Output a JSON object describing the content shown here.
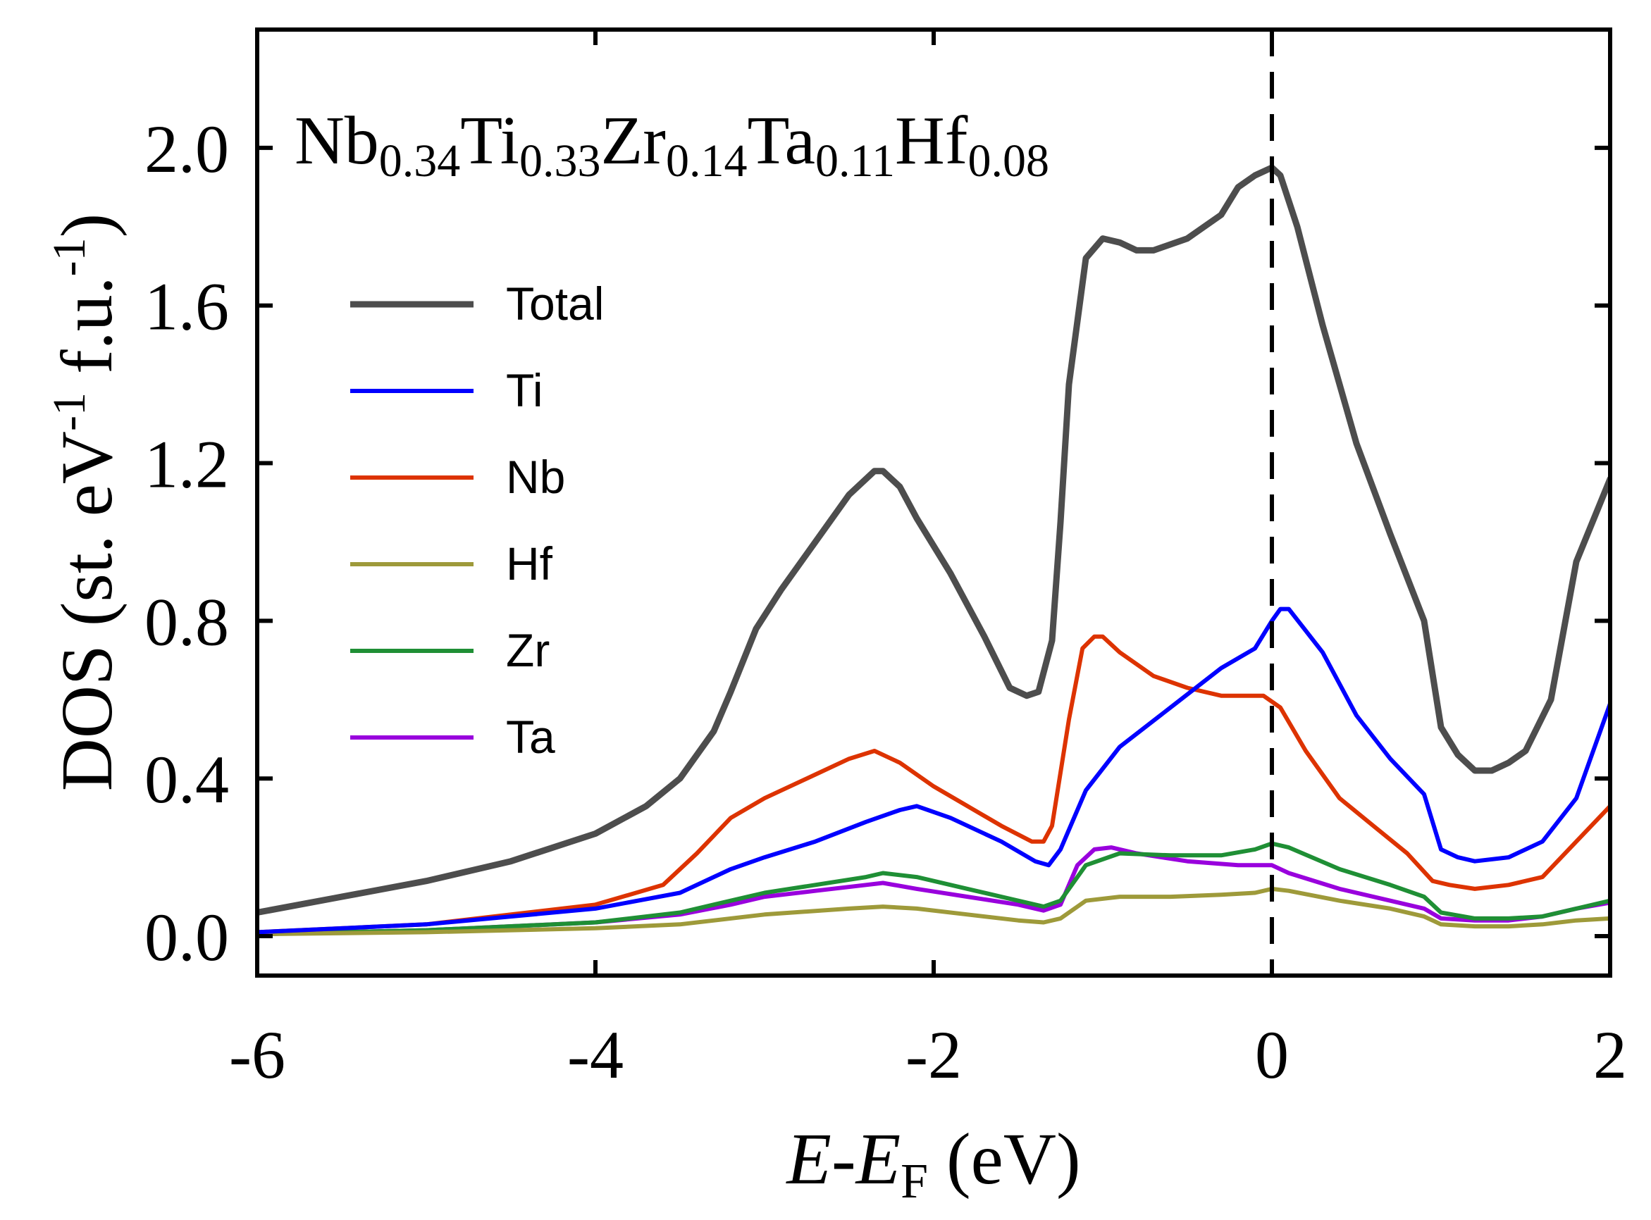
{
  "chart_data": {
    "type": "line",
    "title": {
      "parts": [
        {
          "base": "Nb",
          "sub": "0.34"
        },
        {
          "base": "Ti",
          "sub": "0.33"
        },
        {
          "base": "Zr",
          "sub": "0.14"
        },
        {
          "base": "Ta",
          "sub": "0.11"
        },
        {
          "base": "Hf",
          "sub": "0.08"
        }
      ]
    },
    "xlabel": {
      "italic_E": "E",
      "dash": "-",
      "italic_E2": "E",
      "sub": "F",
      "unit": " (eV)"
    },
    "ylabel": {
      "prefix": "DOS (st. eV",
      "sup1": "-1",
      "mid": " f.u.",
      "sup2": "-1",
      "suffix": ")"
    },
    "xlim": [
      -6,
      2
    ],
    "ylim": [
      -0.1,
      2.3
    ],
    "xticks": [
      -6,
      -4,
      -2,
      0,
      2
    ],
    "xtick_labels": [
      "-6",
      "-4",
      "-2",
      "0",
      "2"
    ],
    "yticks": [
      0.0,
      0.4,
      0.8,
      1.2,
      1.6,
      2.0
    ],
    "ytick_labels": [
      "0.0",
      "0.4",
      "0.8",
      "1.2",
      "1.6",
      "2.0"
    ],
    "fermi_line_x": 0,
    "legend_position": "upper-left",
    "series": [
      {
        "name": "Total",
        "color": "#4d4d4d",
        "x": [
          -6,
          -5.5,
          -5,
          -4.5,
          -4,
          -3.7,
          -3.5,
          -3.3,
          -3.2,
          -3.05,
          -2.9,
          -2.7,
          -2.5,
          -2.35,
          -2.3,
          -2.2,
          -2.1,
          -1.9,
          -1.7,
          -1.55,
          -1.45,
          -1.38,
          -1.3,
          -1.25,
          -1.2,
          -1.1,
          -1.0,
          -0.9,
          -0.8,
          -0.7,
          -0.5,
          -0.3,
          -0.2,
          -0.1,
          0.0,
          0.05,
          0.15,
          0.3,
          0.5,
          0.7,
          0.9,
          1.0,
          1.1,
          1.2,
          1.3,
          1.4,
          1.5,
          1.65,
          1.8,
          2.0
        ],
        "y": [
          0.06,
          0.1,
          0.14,
          0.19,
          0.26,
          0.33,
          0.4,
          0.52,
          0.62,
          0.78,
          0.88,
          1.0,
          1.12,
          1.18,
          1.18,
          1.14,
          1.06,
          0.92,
          0.76,
          0.63,
          0.61,
          0.62,
          0.75,
          1.05,
          1.4,
          1.72,
          1.77,
          1.76,
          1.74,
          1.74,
          1.77,
          1.83,
          1.9,
          1.93,
          1.95,
          1.93,
          1.8,
          1.55,
          1.25,
          1.02,
          0.8,
          0.53,
          0.46,
          0.42,
          0.42,
          0.44,
          0.47,
          0.6,
          0.95,
          1.16
        ]
      },
      {
        "name": "Ti",
        "color": "#0000ff",
        "x": [
          -6,
          -5,
          -4,
          -3.5,
          -3.2,
          -3.0,
          -2.7,
          -2.4,
          -2.2,
          -2.1,
          -1.9,
          -1.6,
          -1.4,
          -1.32,
          -1.25,
          -1.1,
          -0.9,
          -0.6,
          -0.3,
          -0.1,
          0.0,
          0.05,
          0.1,
          0.3,
          0.5,
          0.7,
          0.9,
          1.0,
          1.1,
          1.2,
          1.4,
          1.6,
          1.8,
          2.0
        ],
        "y": [
          0.01,
          0.03,
          0.07,
          0.11,
          0.17,
          0.2,
          0.24,
          0.29,
          0.32,
          0.33,
          0.3,
          0.24,
          0.19,
          0.18,
          0.22,
          0.37,
          0.48,
          0.58,
          0.68,
          0.73,
          0.8,
          0.83,
          0.83,
          0.72,
          0.56,
          0.45,
          0.36,
          0.22,
          0.2,
          0.19,
          0.2,
          0.24,
          0.35,
          0.59
        ]
      },
      {
        "name": "Nb",
        "color": "#dd3300",
        "x": [
          -6,
          -5,
          -4,
          -3.6,
          -3.4,
          -3.2,
          -3.0,
          -2.7,
          -2.5,
          -2.35,
          -2.2,
          -2.0,
          -1.8,
          -1.6,
          -1.42,
          -1.35,
          -1.3,
          -1.2,
          -1.12,
          -1.05,
          -1.0,
          -0.9,
          -0.7,
          -0.5,
          -0.3,
          -0.15,
          -0.05,
          0.05,
          0.2,
          0.4,
          0.6,
          0.8,
          0.95,
          1.05,
          1.2,
          1.4,
          1.6,
          1.8,
          2.0
        ],
        "y": [
          0.01,
          0.03,
          0.08,
          0.13,
          0.21,
          0.3,
          0.35,
          0.41,
          0.45,
          0.47,
          0.44,
          0.38,
          0.33,
          0.28,
          0.24,
          0.24,
          0.28,
          0.55,
          0.73,
          0.76,
          0.76,
          0.72,
          0.66,
          0.63,
          0.61,
          0.61,
          0.61,
          0.58,
          0.47,
          0.35,
          0.28,
          0.21,
          0.14,
          0.13,
          0.12,
          0.13,
          0.15,
          0.24,
          0.33
        ]
      },
      {
        "name": "Hf",
        "color": "#9e9a3a",
        "x": [
          -6,
          -5,
          -4,
          -3.5,
          -3.0,
          -2.5,
          -2.3,
          -2.1,
          -1.8,
          -1.5,
          -1.35,
          -1.25,
          -1.1,
          -0.9,
          -0.6,
          -0.3,
          -0.1,
          0.0,
          0.1,
          0.4,
          0.7,
          0.9,
          1.0,
          1.2,
          1.4,
          1.6,
          1.8,
          2.0
        ],
        "y": [
          0.005,
          0.01,
          0.02,
          0.03,
          0.055,
          0.07,
          0.075,
          0.07,
          0.055,
          0.04,
          0.035,
          0.045,
          0.09,
          0.1,
          0.1,
          0.105,
          0.11,
          0.12,
          0.115,
          0.09,
          0.07,
          0.05,
          0.03,
          0.025,
          0.025,
          0.03,
          0.04,
          0.045
        ]
      },
      {
        "name": "Zr",
        "color": "#1f8f35",
        "x": [
          -6,
          -5,
          -4,
          -3.5,
          -3.2,
          -3.0,
          -2.7,
          -2.4,
          -2.3,
          -2.1,
          -1.8,
          -1.5,
          -1.35,
          -1.25,
          -1.1,
          -0.9,
          -0.6,
          -0.3,
          -0.1,
          0.0,
          0.1,
          0.4,
          0.7,
          0.9,
          1.0,
          1.2,
          1.4,
          1.6,
          1.8,
          2.0
        ],
        "y": [
          0.005,
          0.015,
          0.035,
          0.06,
          0.09,
          0.11,
          0.13,
          0.15,
          0.16,
          0.15,
          0.12,
          0.09,
          0.075,
          0.09,
          0.18,
          0.21,
          0.205,
          0.205,
          0.22,
          0.235,
          0.225,
          0.17,
          0.13,
          0.1,
          0.06,
          0.045,
          0.045,
          0.05,
          0.07,
          0.09
        ]
      },
      {
        "name": "Ta",
        "color": "#9900dd",
        "x": [
          -6,
          -5,
          -4,
          -3.5,
          -3.2,
          -3.0,
          -2.7,
          -2.4,
          -2.3,
          -2.1,
          -1.8,
          -1.5,
          -1.35,
          -1.25,
          -1.15,
          -1.05,
          -0.95,
          -0.8,
          -0.5,
          -0.2,
          0.0,
          0.1,
          0.4,
          0.7,
          0.9,
          1.0,
          1.2,
          1.4,
          1.6,
          1.8,
          2.0
        ],
        "y": [
          0.005,
          0.015,
          0.035,
          0.055,
          0.08,
          0.1,
          0.115,
          0.13,
          0.135,
          0.12,
          0.1,
          0.08,
          0.065,
          0.08,
          0.18,
          0.22,
          0.225,
          0.21,
          0.19,
          0.18,
          0.18,
          0.16,
          0.12,
          0.09,
          0.07,
          0.045,
          0.04,
          0.04,
          0.05,
          0.07,
          0.085
        ]
      }
    ]
  }
}
